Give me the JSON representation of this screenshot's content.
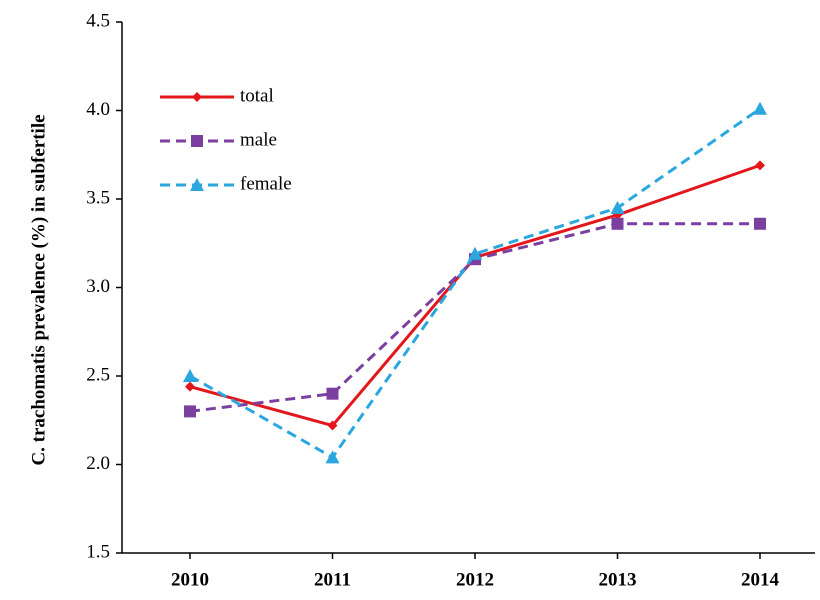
{
  "chart_data": {
    "type": "line",
    "ylabel": "C. trachomatis prevalence (%) in subfertile",
    "categories": [
      "2010",
      "2011",
      "2012",
      "2013",
      "2014"
    ],
    "series": [
      {
        "name": "total",
        "color": "#e3161c",
        "dash": false,
        "marker": "diamond",
        "values": [
          2.44,
          2.22,
          3.17,
          3.41,
          3.69
        ]
      },
      {
        "name": "male",
        "color": "#7b3fa0",
        "dash": true,
        "marker": "square",
        "values": [
          2.3,
          2.4,
          3.16,
          3.36,
          3.36
        ]
      },
      {
        "name": "female",
        "color": "#2aa7df",
        "dash": true,
        "marker": "triangle",
        "values": [
          2.5,
          2.04,
          3.19,
          3.45,
          4.01
        ]
      }
    ],
    "ylim": [
      1.5,
      4.5
    ],
    "yticks": [
      1.5,
      {
        "value": 2,
        "label": "2.0"
      },
      2.5,
      {
        "value": 3,
        "label": "3.0"
      },
      3.5,
      {
        "value": 4,
        "label": "4.0"
      },
      4.5
    ],
    "grid": false,
    "legend": "upper-left"
  }
}
